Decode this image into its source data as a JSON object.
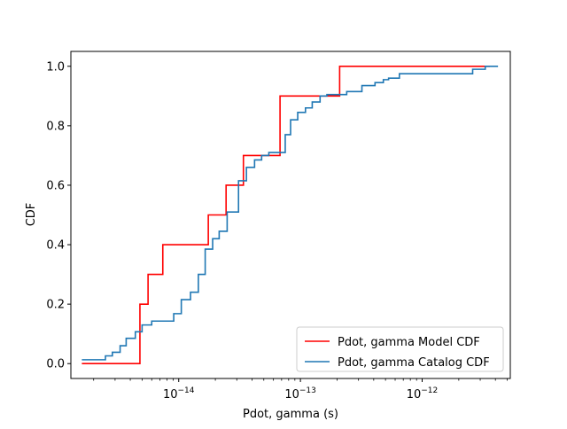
{
  "chart_data": {
    "type": "line",
    "title": "",
    "xlabel": "Pdot, gamma (s)",
    "ylabel": "CDF",
    "xscale": "log",
    "xlim": [
      1.3e-15,
      5.3e-12
    ],
    "ylim": [
      -0.05,
      1.05
    ],
    "x_ticks": [
      {
        "value": 1e-14,
        "base": "10",
        "exp": "−14"
      },
      {
        "value": 1e-13,
        "base": "10",
        "exp": "−13"
      },
      {
        "value": 1e-12,
        "base": "10",
        "exp": "−12"
      }
    ],
    "y_ticks": [
      "0.0",
      "0.2",
      "0.4",
      "0.6",
      "0.8",
      "1.0"
    ],
    "grid": false,
    "legend_position": "lower-right",
    "series": [
      {
        "name": "Pdot, gamma Model CDF",
        "color": "#ff0000",
        "x": [
          1.6e-15,
          4.8e-15,
          5.6e-15,
          7.4e-15,
          1.75e-14,
          2.45e-14,
          3.4e-14,
          6.8e-14,
          2.1e-13,
          3.6e-12
        ],
        "y": [
          0.0,
          0.2,
          0.3,
          0.4,
          0.5,
          0.6,
          0.7,
          0.9,
          1.0,
          1.0
        ]
      },
      {
        "name": "Pdot, gamma Catalog CDF",
        "color": "#1f77b4",
        "x": [
          1.6e-15,
          2.1e-15,
          2.5e-15,
          2.85e-15,
          3.3e-15,
          3.7e-15,
          4.4e-15,
          5e-15,
          6e-15,
          7.8e-15,
          9.1e-15,
          1.05e-14,
          1.25e-14,
          1.45e-14,
          1.65e-14,
          1.9e-14,
          2.15e-14,
          2.5e-14,
          3.1e-14,
          3.6e-14,
          4.2e-14,
          4.8e-14,
          5.5e-14,
          6.3e-14,
          7.5e-14,
          8.3e-14,
          9.5e-14,
          1.1e-13,
          1.25e-13,
          1.45e-13,
          1.65e-13,
          1.85e-13,
          2.4e-13,
          3.2e-13,
          4.1e-13,
          4.8e-13,
          5.3e-13,
          6.5e-13,
          2.6e-12,
          3.3e-12,
          4.2e-12
        ],
        "y": [
          0.013,
          0.013,
          0.026,
          0.038,
          0.06,
          0.085,
          0.107,
          0.13,
          0.143,
          0.143,
          0.168,
          0.215,
          0.24,
          0.3,
          0.385,
          0.42,
          0.445,
          0.51,
          0.615,
          0.66,
          0.685,
          0.7,
          0.71,
          0.71,
          0.77,
          0.82,
          0.845,
          0.86,
          0.88,
          0.9,
          0.905,
          0.905,
          0.915,
          0.935,
          0.945,
          0.955,
          0.96,
          0.975,
          0.99,
          1.0,
          1.0
        ]
      }
    ]
  }
}
